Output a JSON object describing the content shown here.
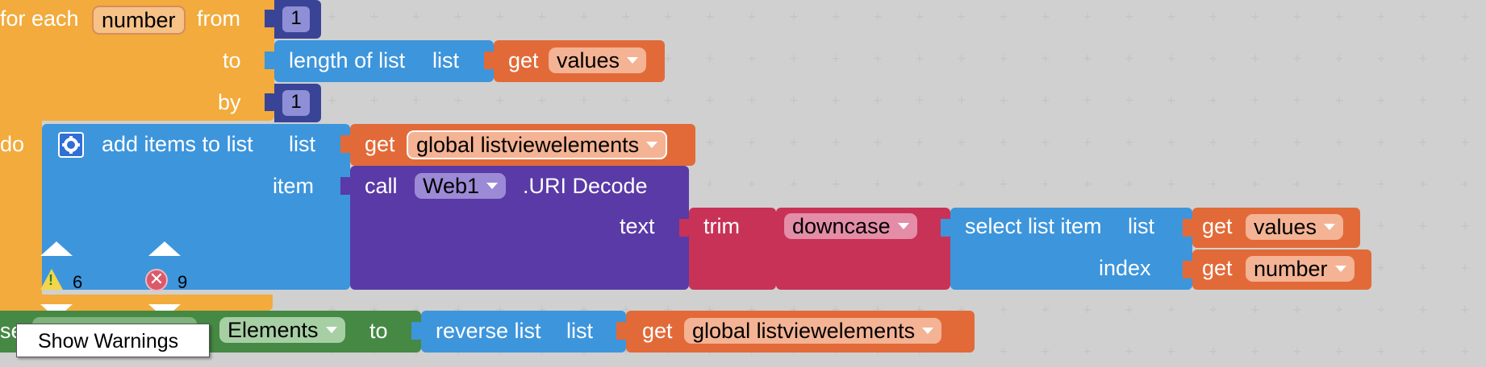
{
  "for_each": {
    "label": "for each",
    "var": "number",
    "from_label": "from",
    "from_value": "1",
    "to_label": "to",
    "by_label": "by",
    "by_value": "1",
    "do_label": "do"
  },
  "length_of_list": {
    "label": "length of list",
    "list_label": "list"
  },
  "get_values_1": {
    "get": "get",
    "var": "values"
  },
  "add_items": {
    "label": "add items to list",
    "list_label": "list",
    "item_label": "item"
  },
  "get_global_1": {
    "get": "get",
    "var": "global listviewelements"
  },
  "call_web": {
    "call": "call",
    "component": "Web1",
    "method": ".URI Decode",
    "text_label": "text"
  },
  "trim": {
    "label": "trim"
  },
  "downcase": {
    "label": "downcase"
  },
  "select_list_item": {
    "label": "select list item",
    "list_label": "list",
    "index_label": "index"
  },
  "get_values_2": {
    "get": "get",
    "var": "values"
  },
  "get_number": {
    "get": "get",
    "var": "number"
  },
  "warnings": {
    "warning_count": "6",
    "error_count": "9"
  },
  "set_block": {
    "prefix": "se",
    "component_suffix": "Elements",
    "to_label": "to"
  },
  "reverse_list": {
    "label": "reverse list",
    "list_label": "list"
  },
  "get_global_2": {
    "get": "get",
    "var": "global listviewelements"
  },
  "tooltip": {
    "show_warnings": "Show Warnings"
  },
  "colors": {
    "control": "#f2ab3c",
    "lists": "#3d95dc",
    "variables": "#e26a38",
    "math": "#3a4496",
    "component": "#5a3aa6",
    "text": "#c83256",
    "setter": "#468944"
  }
}
